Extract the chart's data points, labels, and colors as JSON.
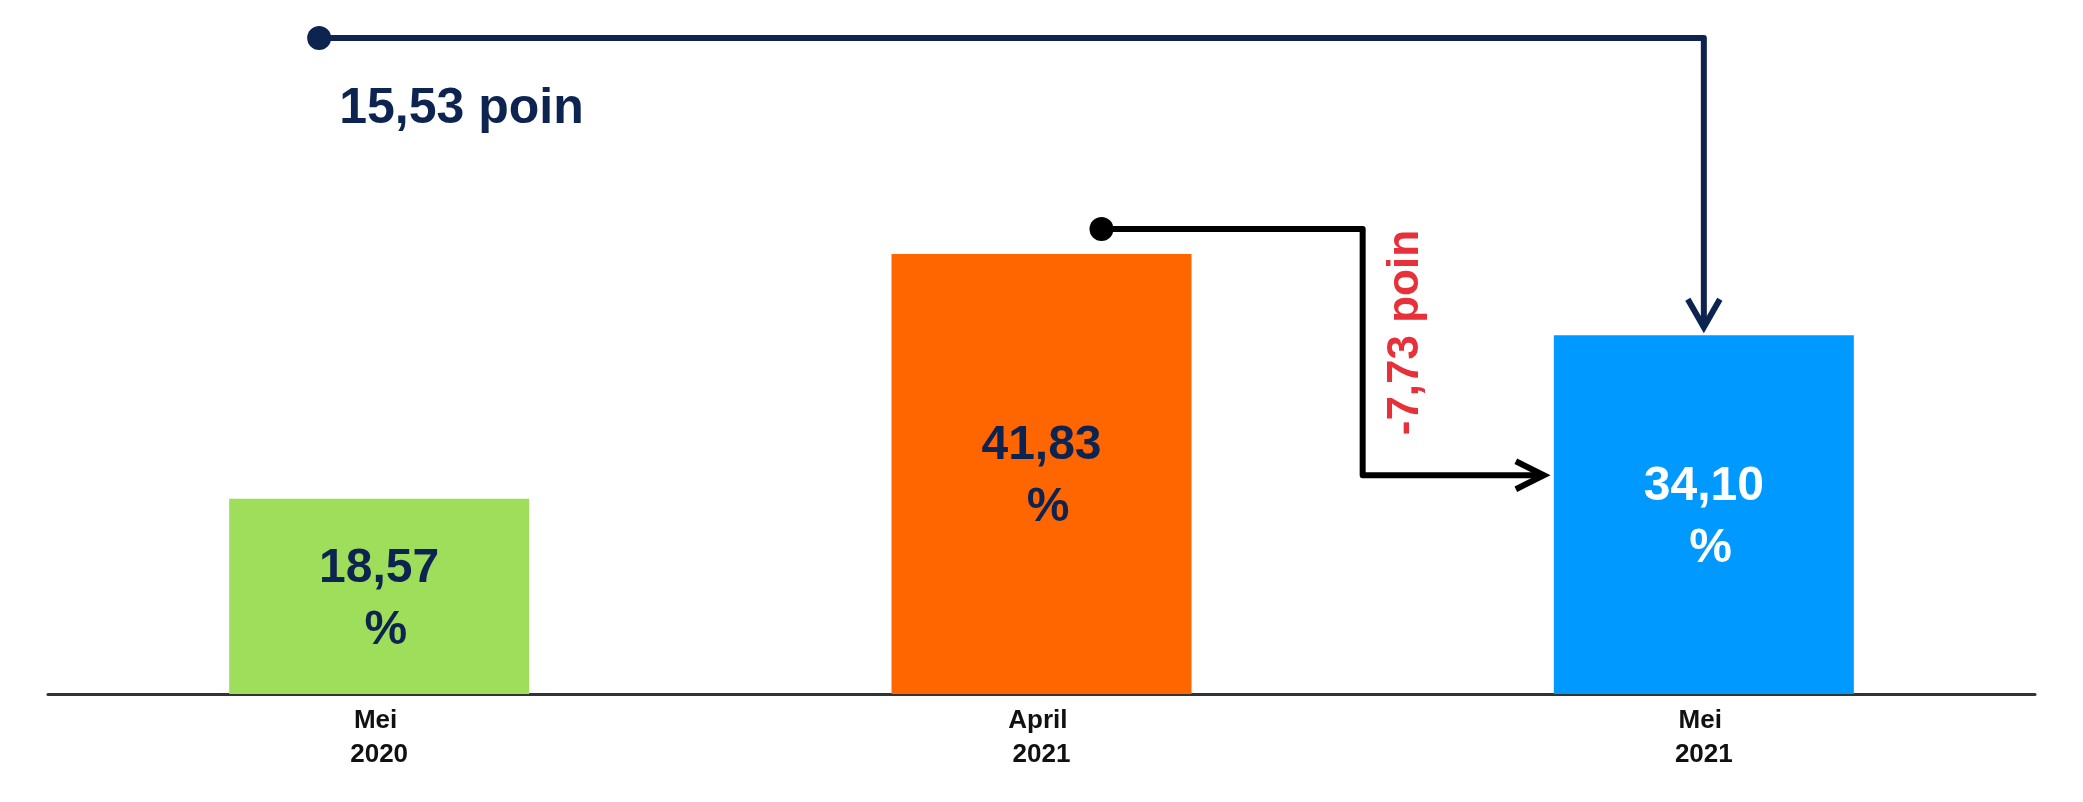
{
  "chart_data": {
    "type": "bar",
    "categories": [
      "Mei 2020",
      "April 2021",
      "Mei 2021"
    ],
    "values": [
      18.57,
      41.83,
      34.1
    ],
    "colors": [
      "#9ede5a",
      "#ff6600",
      "#0099ff"
    ],
    "value_labels": [
      "18,57 %",
      "41,83 %",
      "34,10 %"
    ],
    "annotations": [
      "15,53 poin",
      "-7,73 poin"
    ],
    "grid": false
  }
}
